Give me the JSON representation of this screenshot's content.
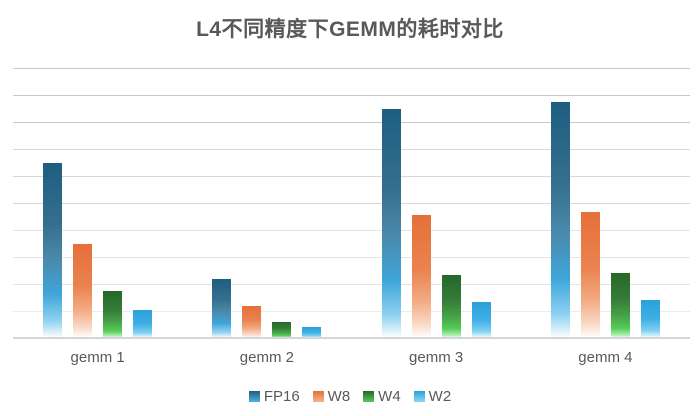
{
  "chart_data": {
    "type": "bar",
    "title": "L4不同精度下GEMM的耗时对比",
    "categories": [
      "gemm 1",
      "gemm 2",
      "gemm 3",
      "gemm 4"
    ],
    "series": [
      {
        "name": "FP16",
        "values": [
          6.5,
          2.2,
          8.5,
          8.75
        ],
        "color": "#1d5e80",
        "bar_gradient": [
          "#1d5e80 0%",
          "#356f8e 35%",
          "#4a89aa 55%",
          "#3fa6da 75%",
          "#8ed1f1 90%",
          "#ffffff 100%"
        ],
        "swatch_gradient": [
          "#1d5e80 0%",
          "#4fb0e2 100%"
        ]
      },
      {
        "name": "W8",
        "values": [
          3.5,
          1.2,
          4.55,
          4.65
        ],
        "color": "#e66f38",
        "bar_gradient": [
          "#e66f38 0%",
          "#ea8350 45%",
          "#f2ab83 70%",
          "#f9d7c2 88%",
          "#ffffff 100%"
        ],
        "swatch_gradient": [
          "#e66f38 0%",
          "#f4b48d 100%"
        ]
      },
      {
        "name": "W4",
        "values": [
          1.75,
          0.6,
          2.35,
          2.4
        ],
        "color": "#256829",
        "bar_gradient": [
          "#256829 0%",
          "#357c37 40%",
          "#46a148 65%",
          "#55cb58 85%",
          "#b2efb3 96%",
          "#ffffff 100%"
        ],
        "swatch_gradient": [
          "#256829 0%",
          "#55cb58 100%"
        ]
      },
      {
        "name": "W2",
        "values": [
          1.05,
          0.4,
          1.35,
          1.4
        ],
        "color": "#29a1dc",
        "bar_gradient": [
          "#29a1dc 0%",
          "#3fafe4 50%",
          "#7ecff2 80%",
          "#c9edfb 93%",
          "#ffffff 100%"
        ],
        "swatch_gradient": [
          "#29a1dc 0%",
          "#8ed5f3 100%"
        ]
      }
    ],
    "xlabel": "",
    "ylabel": "",
    "ylim": [
      0,
      10
    ],
    "y_tick_labels_visible": false,
    "gridline_interval": 1,
    "grid": true,
    "grid_color": "#d9d9d9",
    "axis_line_color": "#d6d6d6",
    "legend_position": "bottom",
    "text_color": "#595959",
    "background_color": "#ffffff"
  }
}
